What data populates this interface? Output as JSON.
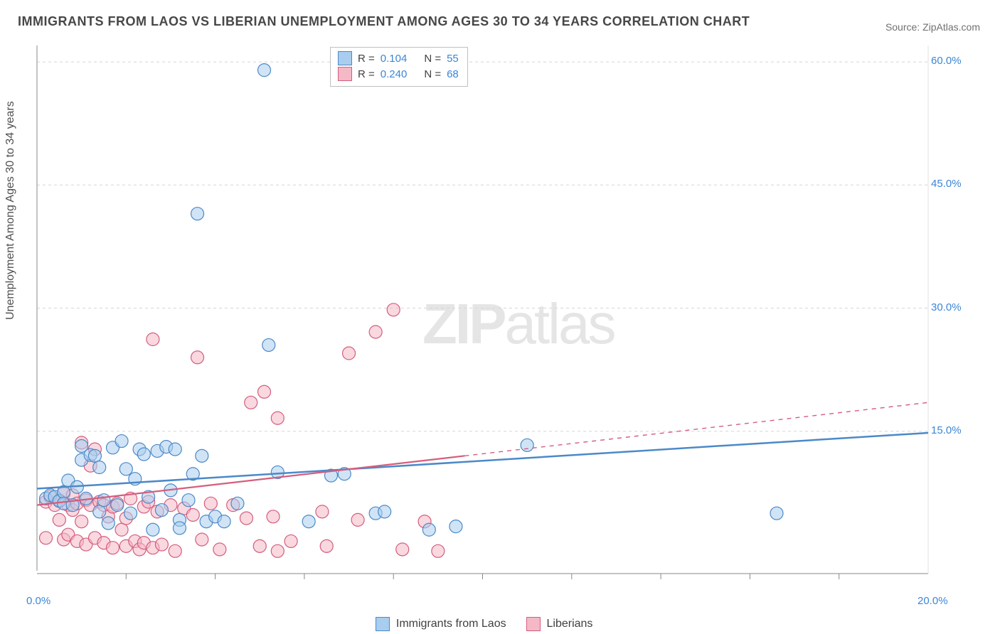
{
  "title": "IMMIGRANTS FROM LAOS VS LIBERIAN UNEMPLOYMENT AMONG AGES 30 TO 34 YEARS CORRELATION CHART",
  "source_prefix": "Source: ",
  "source_name": "ZipAtlas.com",
  "ylabel": "Unemployment Among Ages 30 to 34 years",
  "watermark_bold": "ZIP",
  "watermark_thin": "atlas",
  "chart": {
    "type": "scatter",
    "x_range": [
      0,
      20
    ],
    "y_range": [
      -2,
      62
    ],
    "x_ticks": [
      0,
      20
    ],
    "x_tick_labels": [
      "0.0%",
      "20.0%"
    ],
    "x_tick_minor": [
      2,
      4,
      6,
      8,
      10,
      12,
      14,
      16,
      18
    ],
    "y_ticks": [
      15,
      30,
      45,
      60
    ],
    "y_tick_labels": [
      "15.0%",
      "30.0%",
      "45.0%",
      "60.0%"
    ],
    "grid_color": "#d5d5d5",
    "axis_color": "#888888",
    "background": "#ffffff",
    "marker_radius": 9,
    "marker_opacity": 0.55,
    "label_fontsize": 15,
    "title_fontsize": 18,
    "series": [
      {
        "name": "Immigrants from Laos",
        "fill": "#a9cdef",
        "stroke": "#4b89c8",
        "R": "0.104",
        "N": "55",
        "trend": {
          "y_at_x0": 8.0,
          "y_at_xmax": 14.8,
          "solid_until_x": 20,
          "stroke_width": 2.5
        },
        "points": [
          [
            5.1,
            59.0
          ],
          [
            3.6,
            41.5
          ],
          [
            5.2,
            25.5
          ],
          [
            11.0,
            13.3
          ],
          [
            16.6,
            5.0
          ],
          [
            0.2,
            6.8
          ],
          [
            0.3,
            7.2
          ],
          [
            0.4,
            7.0
          ],
          [
            0.5,
            6.5
          ],
          [
            0.6,
            7.6
          ],
          [
            0.6,
            6.2
          ],
          [
            0.7,
            9.0
          ],
          [
            0.8,
            6.0
          ],
          [
            0.9,
            8.2
          ],
          [
            1.0,
            13.2
          ],
          [
            1.0,
            11.5
          ],
          [
            1.1,
            6.8
          ],
          [
            1.2,
            12.1
          ],
          [
            1.3,
            12.0
          ],
          [
            1.4,
            5.2
          ],
          [
            1.4,
            10.6
          ],
          [
            1.5,
            6.6
          ],
          [
            1.6,
            3.8
          ],
          [
            1.7,
            13.0
          ],
          [
            1.8,
            6.0
          ],
          [
            1.9,
            13.8
          ],
          [
            2.0,
            10.4
          ],
          [
            2.1,
            5.0
          ],
          [
            2.2,
            9.2
          ],
          [
            2.3,
            12.8
          ],
          [
            2.4,
            12.2
          ],
          [
            2.5,
            7.0
          ],
          [
            2.6,
            3.0
          ],
          [
            2.7,
            12.6
          ],
          [
            2.8,
            5.4
          ],
          [
            2.9,
            13.1
          ],
          [
            3.0,
            7.8
          ],
          [
            3.1,
            12.8
          ],
          [
            3.2,
            4.2
          ],
          [
            3.2,
            3.2
          ],
          [
            3.4,
            6.6
          ],
          [
            3.5,
            9.8
          ],
          [
            3.7,
            12.0
          ],
          [
            3.8,
            4.0
          ],
          [
            4.0,
            4.6
          ],
          [
            4.2,
            4.0
          ],
          [
            4.5,
            6.2
          ],
          [
            5.4,
            10.0
          ],
          [
            6.1,
            4.0
          ],
          [
            6.6,
            9.6
          ],
          [
            6.9,
            9.8
          ],
          [
            7.6,
            5.0
          ],
          [
            7.8,
            5.2
          ],
          [
            8.8,
            3.0
          ],
          [
            9.4,
            3.4
          ]
        ]
      },
      {
        "name": "Liberians",
        "fill": "#f4b8c6",
        "stroke": "#d55d7d",
        "R": "0.240",
        "N": "68",
        "trend": {
          "y_at_x0": 6.0,
          "y_at_xmax": 18.5,
          "solid_until_x": 9.6,
          "stroke_width": 2.2
        },
        "points": [
          [
            8.0,
            29.8
          ],
          [
            7.6,
            27.1
          ],
          [
            7.0,
            24.5
          ],
          [
            2.6,
            26.2
          ],
          [
            3.6,
            24.0
          ],
          [
            5.1,
            19.8
          ],
          [
            4.8,
            18.5
          ],
          [
            5.4,
            16.6
          ],
          [
            0.2,
            6.4
          ],
          [
            0.2,
            2.0
          ],
          [
            0.3,
            7.0
          ],
          [
            0.4,
            6.0
          ],
          [
            0.5,
            6.6
          ],
          [
            0.5,
            4.2
          ],
          [
            0.6,
            7.4
          ],
          [
            0.6,
            1.8
          ],
          [
            0.7,
            6.0
          ],
          [
            0.7,
            2.4
          ],
          [
            0.8,
            5.4
          ],
          [
            0.8,
            7.2
          ],
          [
            0.9,
            6.2
          ],
          [
            0.9,
            1.6
          ],
          [
            1.0,
            13.6
          ],
          [
            1.0,
            4.0
          ],
          [
            1.1,
            6.6
          ],
          [
            1.1,
            1.2
          ],
          [
            1.2,
            6.0
          ],
          [
            1.2,
            10.8
          ],
          [
            1.3,
            12.8
          ],
          [
            1.3,
            2.0
          ],
          [
            1.4,
            6.4
          ],
          [
            1.5,
            6.0
          ],
          [
            1.5,
            1.4
          ],
          [
            1.6,
            4.6
          ],
          [
            1.7,
            5.8
          ],
          [
            1.7,
            0.8
          ],
          [
            1.8,
            6.2
          ],
          [
            1.9,
            3.0
          ],
          [
            2.0,
            4.4
          ],
          [
            2.0,
            1.0
          ],
          [
            2.1,
            6.8
          ],
          [
            2.2,
            1.6
          ],
          [
            2.3,
            0.6
          ],
          [
            2.4,
            5.8
          ],
          [
            2.4,
            1.4
          ],
          [
            2.5,
            6.4
          ],
          [
            2.6,
            0.8
          ],
          [
            2.7,
            5.2
          ],
          [
            2.8,
            1.2
          ],
          [
            3.0,
            6.0
          ],
          [
            3.1,
            0.4
          ],
          [
            3.3,
            5.6
          ],
          [
            3.5,
            4.8
          ],
          [
            3.7,
            1.8
          ],
          [
            3.9,
            6.2
          ],
          [
            4.1,
            0.6
          ],
          [
            4.4,
            6.0
          ],
          [
            4.7,
            4.4
          ],
          [
            5.0,
            1.0
          ],
          [
            5.3,
            4.6
          ],
          [
            5.4,
            0.4
          ],
          [
            5.7,
            1.6
          ],
          [
            6.4,
            5.2
          ],
          [
            6.5,
            1.0
          ],
          [
            7.2,
            4.2
          ],
          [
            8.2,
            0.6
          ],
          [
            8.7,
            4.0
          ],
          [
            9.0,
            0.4
          ]
        ]
      }
    ]
  },
  "legend_top_prefix_R": "R  = ",
  "legend_top_prefix_N": "N  = "
}
